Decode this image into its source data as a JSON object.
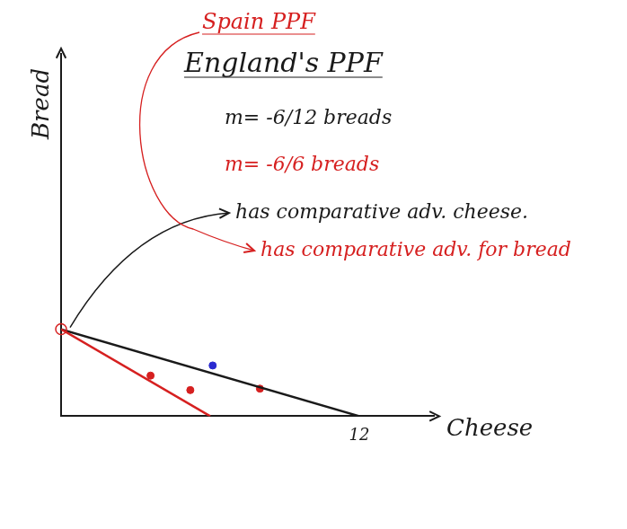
{
  "chart_data": {
    "type": "line",
    "x_label": "Cheese",
    "y_label": "Bread",
    "series": [
      {
        "name": "Spain PPF",
        "color": "#d62020",
        "x": [
          0,
          6
        ],
        "values": [
          6,
          0
        ]
      },
      {
        "name": "England's PPF",
        "color": "#1a1a1a",
        "x": [
          0,
          12
        ],
        "values": [
          6,
          0
        ]
      }
    ],
    "points": [
      {
        "x": 3.6,
        "y": 2.8,
        "color": "#d62020"
      },
      {
        "x": 5.2,
        "y": 1.8,
        "color": "#d62020"
      },
      {
        "x": 6.1,
        "y": 3.5,
        "color": "#2a2ad0"
      },
      {
        "x": 8,
        "y": 1.9,
        "color": "#d62020"
      }
    ],
    "annotations": [
      {
        "text": "m= -6/12 breads",
        "color": "#1a1a1a"
      },
      {
        "text": "m= -6/6 breads",
        "color": "#d62020"
      },
      {
        "text": "has comparative adv. cheese.",
        "color": "#1a1a1a"
      },
      {
        "text": "has comparative adv. for bread",
        "color": "#d62020"
      }
    ],
    "xlim": [
      0,
      15
    ],
    "ylim": [
      0,
      25
    ],
    "xticks": [
      12
    ],
    "yticks": [],
    "tick_labels": "x",
    "grid": false
  }
}
